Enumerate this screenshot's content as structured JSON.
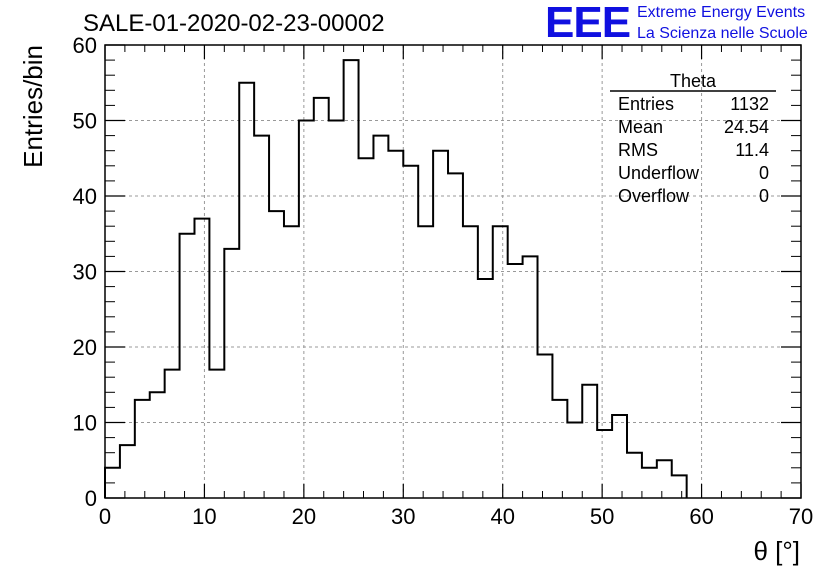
{
  "header": {
    "title": "SALE-01-2020-02-23-00002",
    "logo_text": "EEE",
    "logo_line1": "Extreme Energy Events",
    "logo_line2": "La Scienza nelle Scuole"
  },
  "stats": {
    "name": "Theta",
    "rows": [
      {
        "label": "Entries",
        "value": "1132"
      },
      {
        "label": "Mean",
        "value": "24.54"
      },
      {
        "label": "RMS",
        "value": "11.4"
      },
      {
        "label": "Underflow",
        "value": "0"
      },
      {
        "label": "Overflow",
        "value": "0"
      }
    ]
  },
  "chart_data": {
    "type": "bar",
    "subtype": "step-histogram",
    "title": "SALE-01-2020-02-23-00002",
    "xlabel": "θ [°]",
    "ylabel": "Entries/bin",
    "xlim": [
      0,
      70
    ],
    "ylim": [
      0,
      60
    ],
    "xticks": [
      0,
      10,
      20,
      30,
      40,
      50,
      60,
      70
    ],
    "yticks": [
      0,
      10,
      20,
      30,
      40,
      50,
      60
    ],
    "grid": true,
    "bin_width": 1.5,
    "bin_start": 0,
    "values": [
      4,
      7,
      13,
      14,
      17,
      35,
      37,
      17,
      33,
      55,
      48,
      38,
      36,
      50,
      53,
      50,
      58,
      45,
      48,
      46,
      44,
      36,
      46,
      43,
      36,
      29,
      36,
      31,
      32,
      19,
      13,
      10,
      15,
      9,
      11,
      6,
      4,
      5,
      3
    ],
    "color": "#000000"
  }
}
